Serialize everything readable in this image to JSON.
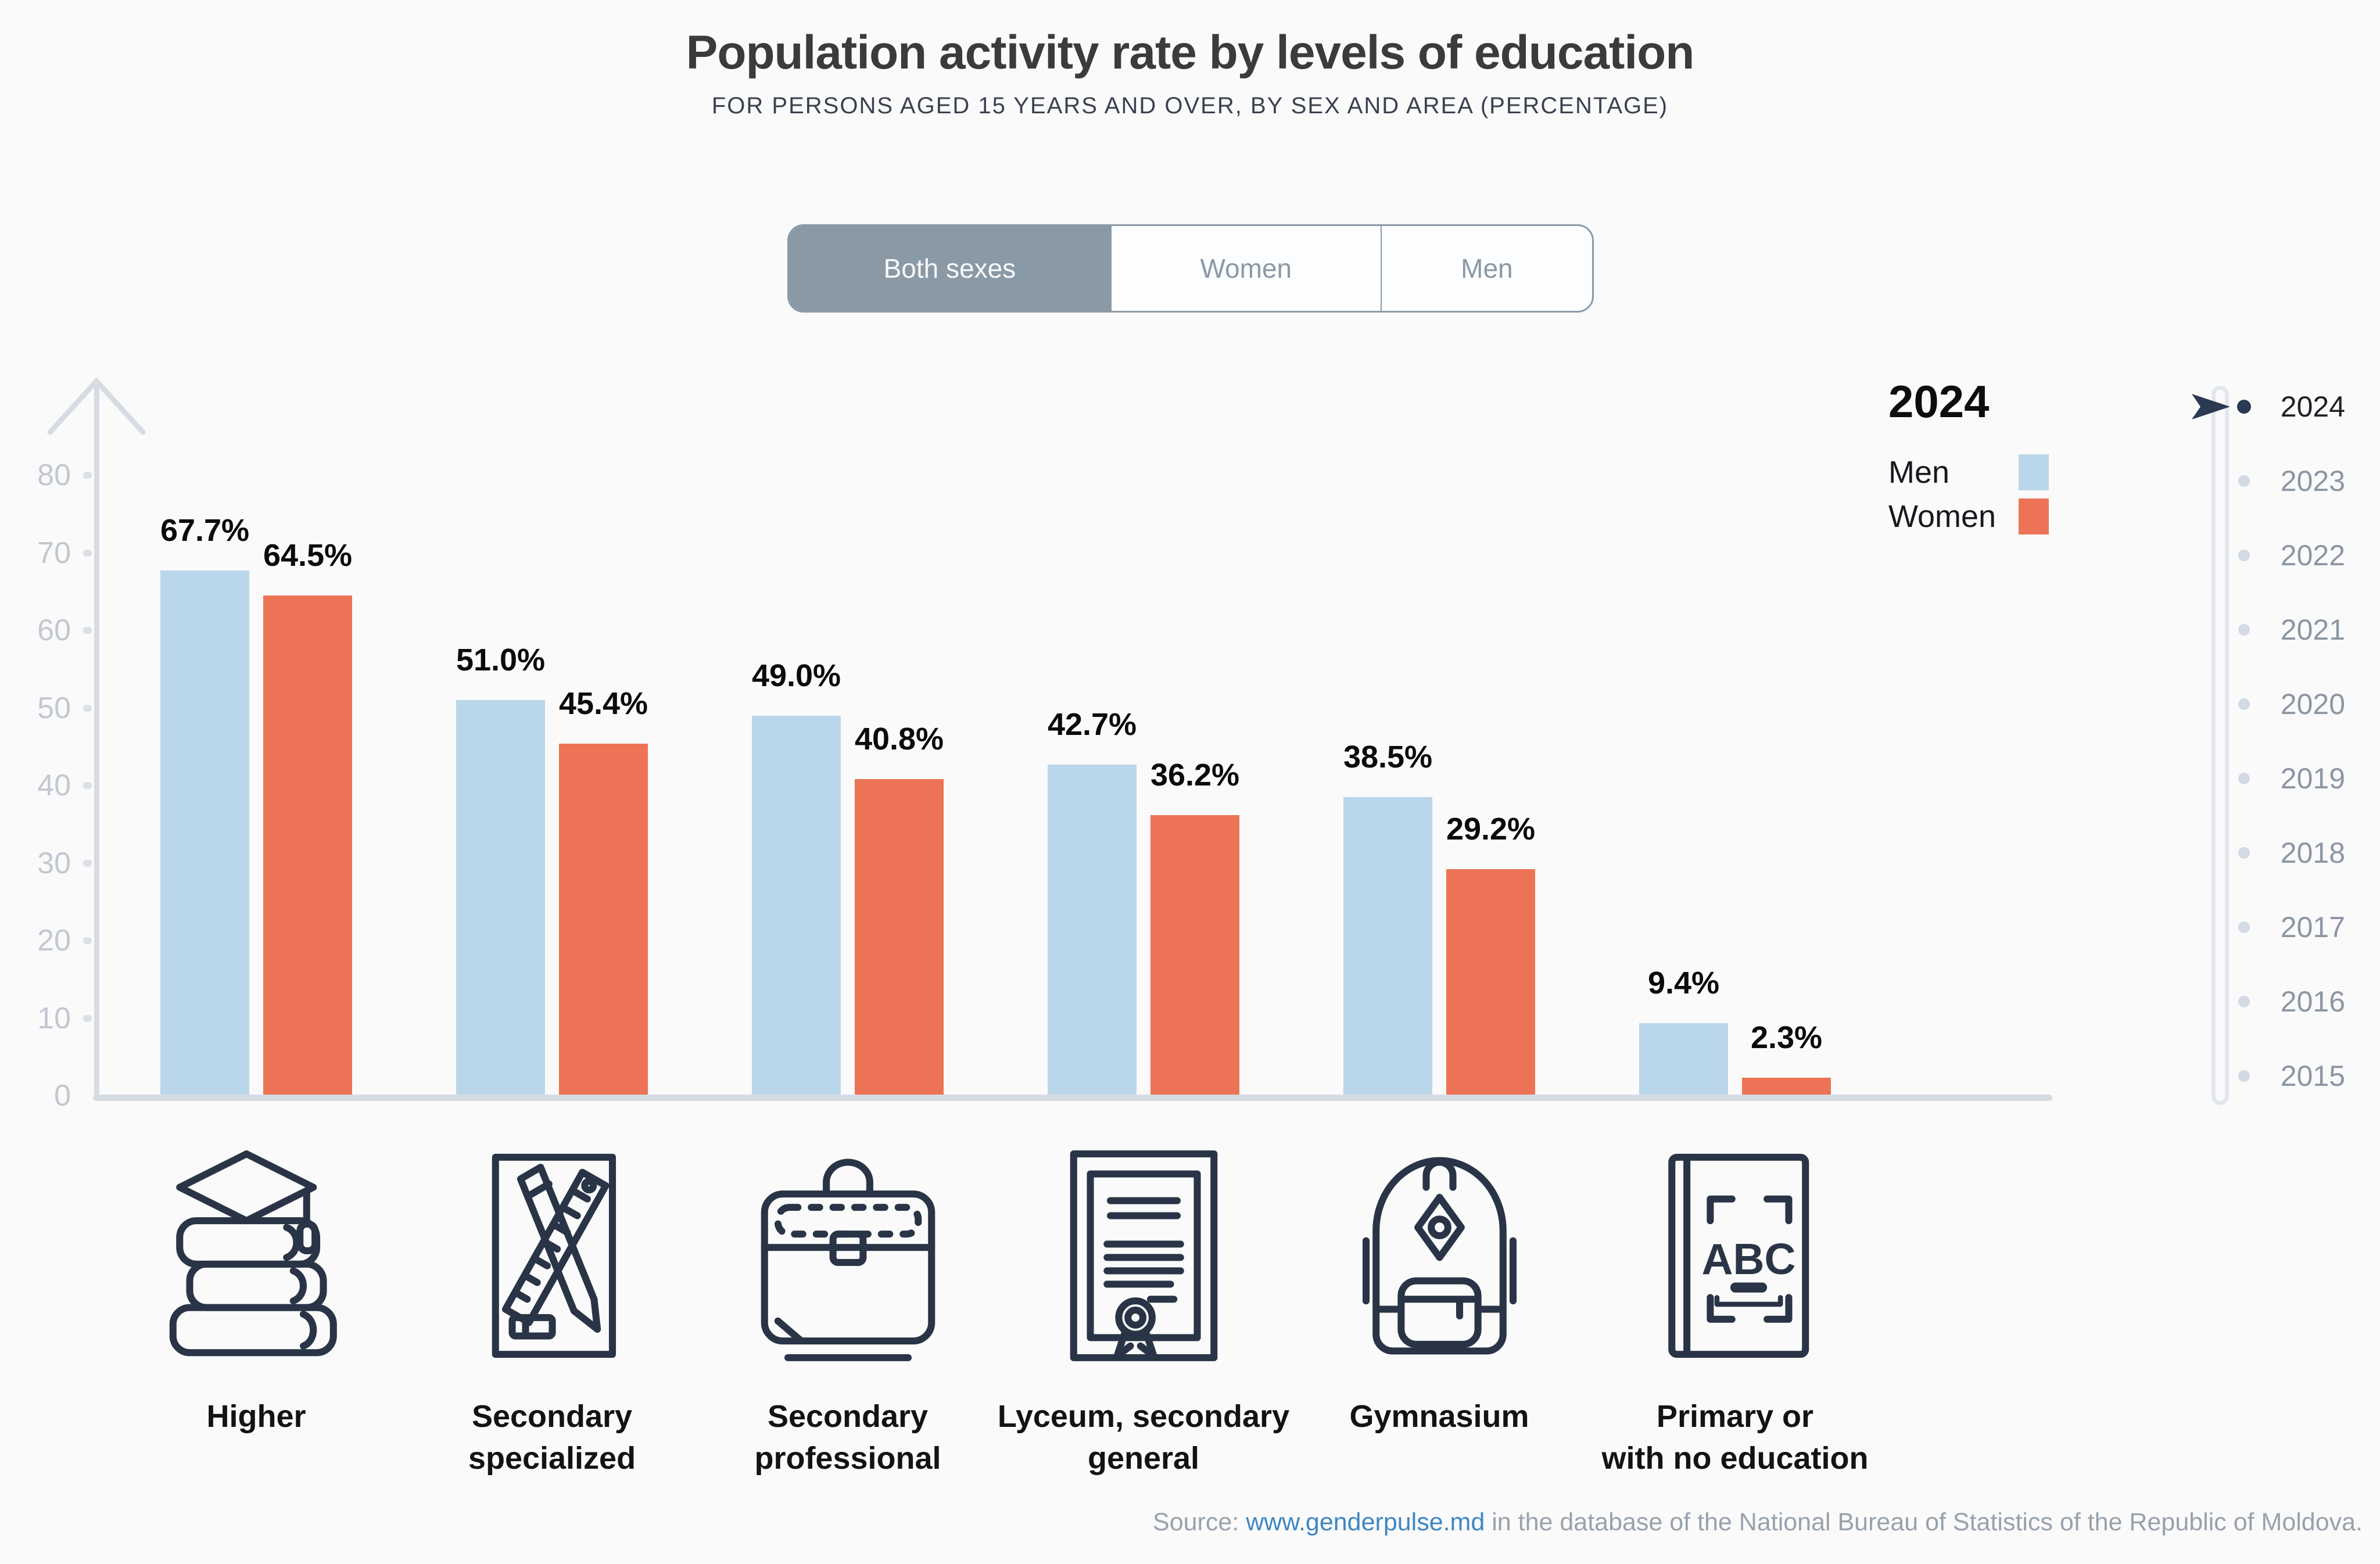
{
  "header": {
    "title": "Population activity rate by levels of education",
    "subtitle": "FOR PERSONS AGED 15 YEARS AND OVER, BY SEX AND AREA (PERCENTAGE)"
  },
  "tabs": [
    {
      "id": "both-sexes",
      "label": "Both sexes",
      "active": true
    },
    {
      "id": "women",
      "label": "Women",
      "active": false
    },
    {
      "id": "men",
      "label": "Men",
      "active": false
    }
  ],
  "legend": {
    "year": "2024"
  },
  "timeline": {
    "years": [
      "2024",
      "2023",
      "2022",
      "2021",
      "2020",
      "2019",
      "2018",
      "2017",
      "2016",
      "2015"
    ],
    "active": "2024"
  },
  "chart_data": {
    "type": "bar",
    "title": "Population activity rate by levels of education",
    "categories": [
      "Higher",
      "Secondary specialized",
      "Secondary professional",
      "Lyceum, secondary general",
      "Gymnasium",
      "Primary or with no education"
    ],
    "series": [
      {
        "name": "Men",
        "color": "#BAD6EA",
        "values": [
          67.7,
          51.0,
          49.0,
          42.7,
          38.5,
          9.4
        ]
      },
      {
        "name": "Women",
        "color": "#EC7356",
        "values": [
          64.5,
          45.4,
          40.8,
          36.2,
          29.2,
          2.3
        ]
      }
    ],
    "value_suffix": "%",
    "ylim": [
      0,
      80
    ],
    "yticks": [
      0,
      10,
      20,
      30,
      40,
      50,
      60,
      70,
      80
    ],
    "grid": false,
    "legend_position": "top-right",
    "selected_year": "2024"
  },
  "categories_display": [
    {
      "icon": "books-graduation-cap-icon",
      "label": "Higher"
    },
    {
      "icon": "pencil-ruler-icon",
      "label": "Secondary\nspecialized"
    },
    {
      "icon": "briefcase-icon",
      "label": "Secondary\nprofessional"
    },
    {
      "icon": "diploma-icon",
      "label": "Lyceum, secondary\ngeneral"
    },
    {
      "icon": "backpack-icon",
      "label": "Gymnasium"
    },
    {
      "icon": "abc-book-icon",
      "label": "Primary or\nwith no education"
    }
  ],
  "source": {
    "prefix": "Source: ",
    "link": "www.genderpulse.md",
    "suffix": " in the database of the National Bureau of Statistics of the Republic of Moldova."
  },
  "colors": {
    "background": "#FAFAFA",
    "bar_men": "#BAD6EA",
    "bar_women": "#EC7356",
    "tab_active": "#8A99A6",
    "axis": "#D7DCE3",
    "accent_dark": "#2B3A52",
    "link": "#3F86C3"
  }
}
